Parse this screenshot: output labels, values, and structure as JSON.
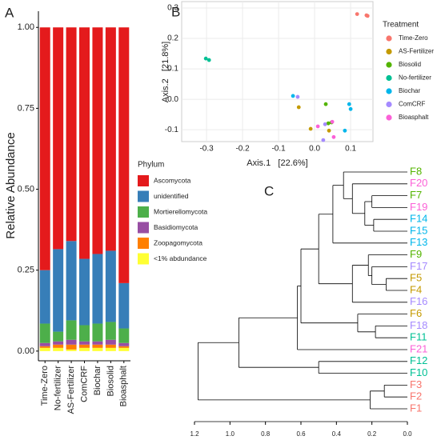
{
  "chart_data": [
    {
      "type": "bar",
      "panel": "A",
      "y_label": "Relative Abundance",
      "legend_title": "Phylum",
      "categories": [
        "Time-Zero",
        "No-fertilizer",
        "AS-Fertilizer",
        "ComCRF",
        "Biochar",
        "Biosolid",
        "Bioasphalt"
      ],
      "series": [
        {
          "name": "Ascomycota",
          "color": "#E41A1C",
          "values": [
            0.75,
            0.685,
            0.66,
            0.715,
            0.7,
            0.69,
            0.79
          ]
        },
        {
          "name": "unidentified",
          "color": "#377EB8",
          "values": [
            0.165,
            0.255,
            0.245,
            0.205,
            0.215,
            0.22,
            0.14
          ]
        },
        {
          "name": "Mortierellomycota",
          "color": "#4DAF4A",
          "values": [
            0.06,
            0.03,
            0.06,
            0.05,
            0.055,
            0.055,
            0.045
          ]
        },
        {
          "name": "Basidiomycota",
          "color": "#984EA3",
          "values": [
            0.01,
            0.01,
            0.015,
            0.01,
            0.01,
            0.015,
            0.01
          ]
        },
        {
          "name": "Zoopagomycota",
          "color": "#FF7F00",
          "values": [
            0.005,
            0.01,
            0.015,
            0.01,
            0.01,
            0.01,
            0.005
          ]
        },
        {
          "name": "<1% abdundance",
          "color": "#FFFF33",
          "values": [
            0.01,
            0.01,
            0.005,
            0.01,
            0.01,
            0.01,
            0.01
          ]
        }
      ],
      "ylim": [
        -0.03,
        1.05
      ],
      "yticks": [
        {
          "value": 0,
          "label": "0.00"
        },
        0.25,
        {
          "value": 0.5,
          "label": "0.50"
        },
        0.75,
        {
          "value": 1,
          "label": "1.00"
        }
      ]
    },
    {
      "type": "scatter",
      "panel": "B",
      "x_label": "Axis.1   [22.6%]",
      "y_label": "Axis.2   [21.8%]",
      "legend_title": "Treatment",
      "grid": true,
      "series": [
        {
          "name": "Time-Zero",
          "color": "#F8766D",
          "x": [
            0.118,
            0.144,
            0.147
          ],
          "y": [
            0.28,
            0.276,
            0.274
          ]
        },
        {
          "name": "AS-Fertilizer",
          "color": "#C49A00",
          "x": [
            -0.044,
            -0.011,
            0.04
          ],
          "y": [
            -0.026,
            -0.097,
            -0.103
          ]
        },
        {
          "name": "Biosolid",
          "color": "#53B400",
          "x": [
            0.031,
            0.038,
            0.047
          ],
          "y": [
            -0.016,
            -0.079,
            -0.076
          ]
        },
        {
          "name": "No-fertilizer",
          "color": "#00C094",
          "x": [
            -0.302,
            -0.293
          ],
          "y": [
            0.134,
            0.129
          ]
        },
        {
          "name": "Biochar",
          "color": "#00B6EB",
          "x": [
            -0.06,
            0.096,
            0.1,
            0.084
          ],
          "y": [
            0.011,
            -0.016,
            -0.032,
            -0.103
          ]
        },
        {
          "name": "ComCRF",
          "color": "#A58AFF",
          "x": [
            -0.047,
            0.024,
            0.029
          ],
          "y": [
            0.008,
            -0.134,
            -0.082
          ]
        },
        {
          "name": "Bioasphalt",
          "color": "#FB61D7",
          "x": [
            0.009,
            0.053,
            0.049
          ],
          "y": [
            -0.089,
            -0.124,
            -0.074
          ]
        }
      ],
      "xlim": [
        -0.369,
        0.162
      ],
      "ylim": [
        -0.139,
        0.321
      ],
      "xticks": [
        -0.3,
        -0.2,
        -0.1,
        {
          "value": 0,
          "label": "0.0"
        },
        0.1
      ],
      "yticks": [
        -0.1,
        {
          "value": 0,
          "label": "0.0"
        },
        0.1,
        0.2,
        0.3
      ]
    },
    {
      "type": "dendrogram",
      "panel": "C",
      "xlim": [
        1.2,
        0
      ],
      "xticks": [
        1.2,
        {
          "value": 1,
          "label": "1.0"
        },
        0.8,
        0.6,
        0.4,
        0.2,
        {
          "value": 0,
          "label": "0.0"
        }
      ],
      "tree": {
        "height": 1.18,
        "children": [
          {
            "height": 0.95,
            "children": [
              {
                "height": 0.62,
                "children": [
                  {
                    "height": 0.6,
                    "children": [
                      {
                        "height": 0.5,
                        "children": [
                          {
                            "height": 0.42,
                            "children": [
                              {
                                "height": 0.36,
                                "children": [
                                  {
                                    "label": "F8",
                                    "color": "#53B400"
                                  },
                                  {
                                    "height": 0.31,
                                    "children": [
                                      {
                                        "label": "F20",
                                        "color": "#FB61D7"
                                      },
                                      {
                                        "height": 0.24,
                                        "children": [
                                          {
                                            "height": 0.2,
                                            "children": [
                                              {
                                                "label": "F7",
                                                "color": "#53B400"
                                              },
                                              {
                                                "label": "F19",
                                                "color": "#FB61D7"
                                              }
                                            ]
                                          },
                                          {
                                            "height": 0.19,
                                            "children": [
                                              {
                                                "label": "F14",
                                                "color": "#00B6EB"
                                              },
                                              {
                                                "label": "F15",
                                                "color": "#00B6EB"
                                              }
                                            ]
                                          }
                                        ]
                                      }
                                    ]
                                  }
                                ]
                              },
                              {
                                "label": "F13",
                                "color": "#00B6EB"
                              }
                            ]
                          },
                          {
                            "height": 0.31,
                            "children": [
                              {
                                "height": 0.22,
                                "children": [
                                  {
                                    "label": "F9",
                                    "color": "#53B400"
                                  },
                                  {
                                    "height": 0.2,
                                    "children": [
                                      {
                                        "label": "F17",
                                        "color": "#A58AFF"
                                      },
                                      {
                                        "height": 0.12,
                                        "children": [
                                          {
                                            "label": "F5",
                                            "color": "#C49A00"
                                          },
                                          {
                                            "label": "F4",
                                            "color": "#C49A00"
                                          }
                                        ]
                                      }
                                    ]
                                  }
                                ]
                              },
                              {
                                "label": "F16",
                                "color": "#A58AFF"
                              }
                            ]
                          }
                        ]
                      },
                      {
                        "height": 0.28,
                        "children": [
                          {
                            "label": "F6",
                            "color": "#C49A00"
                          },
                          {
                            "height": 0.18,
                            "children": [
                              {
                                "label": "F18",
                                "color": "#A58AFF"
                              },
                              {
                                "label": "F11",
                                "color": "#00C094"
                              }
                            ]
                          }
                        ]
                      }
                    ]
                  },
                  {
                    "label": "F21",
                    "color": "#FB61D7"
                  }
                ]
              },
              {
                "height": 0.5,
                "children": [
                  {
                    "label": "F12",
                    "color": "#00C094"
                  },
                  {
                    "label": "F10",
                    "color": "#00C094"
                  }
                ]
              }
            ]
          },
          {
            "height": 0.21,
            "children": [
              {
                "height": 0.13,
                "children": [
                  {
                    "label": "F3",
                    "color": "#F8766D"
                  },
                  {
                    "label": "F2",
                    "color": "#F8766D"
                  }
                ]
              },
              {
                "label": "F1",
                "color": "#F8766D"
              }
            ]
          }
        ]
      }
    }
  ]
}
